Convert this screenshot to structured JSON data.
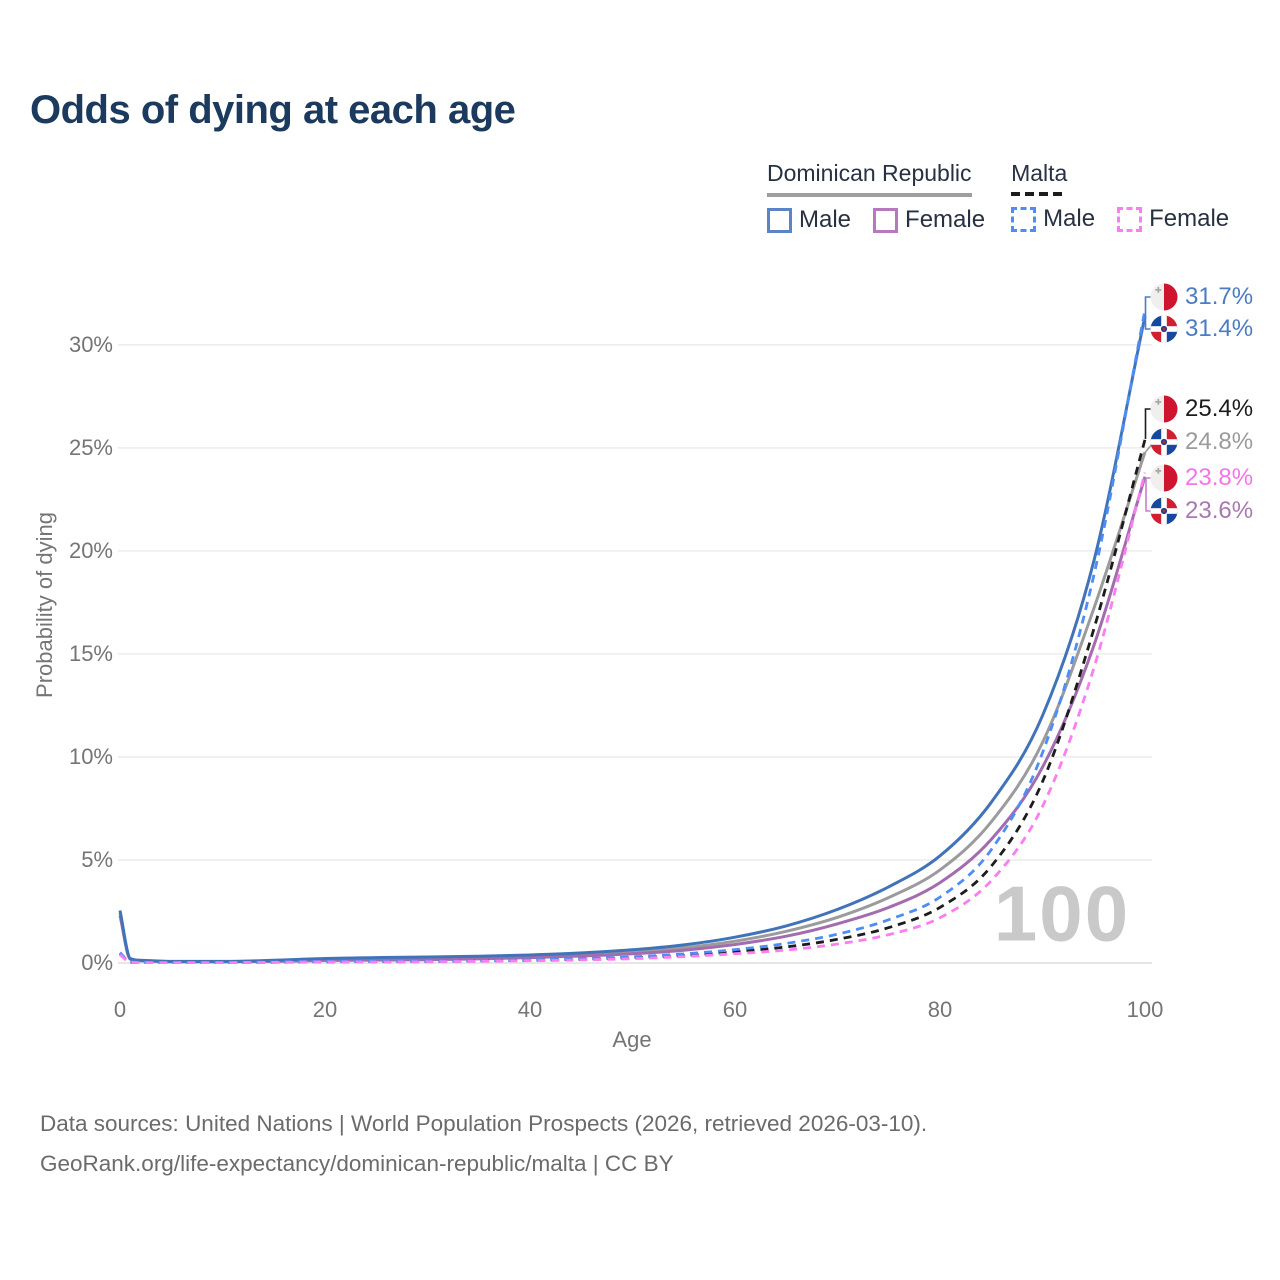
{
  "title": "Odds of dying at each age",
  "watermark": "100",
  "legend": {
    "groups": [
      {
        "label": "Dominican Republic",
        "style": "solid",
        "color": "#9e9ea0"
      },
      {
        "label": "Malta",
        "style": "dashed",
        "color": "#1c1c1c"
      }
    ],
    "items": [
      {
        "label": "Male",
        "country": "Dominican Republic",
        "group": 0,
        "style": "solid",
        "color": "#5b84c4"
      },
      {
        "label": "Female",
        "country": "Dominican Republic",
        "group": 0,
        "style": "solid",
        "color": "#b778bd"
      },
      {
        "label": "Male",
        "country": "Malta",
        "group": 1,
        "style": "dashed",
        "color": "#4e8cf6"
      },
      {
        "label": "Female",
        "country": "Malta",
        "group": 1,
        "style": "dashed",
        "color": "#fa7df2"
      }
    ]
  },
  "chart_data": {
    "type": "line",
    "title": "Odds of dying at each age",
    "xlabel": "Age",
    "ylabel": "Probability of dying",
    "x_ticks": [
      0,
      20,
      40,
      60,
      80,
      100
    ],
    "y_ticks": [
      "0%",
      "5%",
      "10%",
      "15%",
      "20%",
      "25%",
      "30%"
    ],
    "xlim": [
      0,
      100
    ],
    "ylim": [
      0,
      33
    ],
    "grid": "horizontal",
    "age_cursor": "100",
    "ages": [
      0,
      1,
      2,
      5,
      10,
      15,
      20,
      25,
      30,
      35,
      40,
      45,
      50,
      55,
      60,
      65,
      70,
      75,
      80,
      85,
      90,
      95,
      100
    ],
    "series": [
      {
        "name": "Dominican Republic Combined",
        "country": "Dominican Republic",
        "sex": "Combined",
        "color": "#9b9b9d",
        "dash": false,
        "end_value": "24.8%",
        "values": [
          2.42,
          0.2,
          0.12,
          0.07,
          0.07,
          0.1,
          0.17,
          0.2,
          0.22,
          0.26,
          0.32,
          0.41,
          0.54,
          0.74,
          1.06,
          1.54,
          2.22,
          3.18,
          4.52,
          6.85,
          10.7,
          17.2,
          24.8
        ]
      },
      {
        "name": "Dominican Republic Female",
        "country": "Dominican Republic",
        "sex": "Female",
        "color": "#a26cae",
        "dash": false,
        "end_value": "23.6%",
        "values": [
          2.3,
          0.18,
          0.11,
          0.06,
          0.06,
          0.08,
          0.12,
          0.14,
          0.16,
          0.2,
          0.26,
          0.34,
          0.45,
          0.62,
          0.9,
          1.3,
          1.9,
          2.7,
          3.9,
          6.0,
          9.5,
          15.4,
          23.6
        ]
      },
      {
        "name": "Dominican Republic Male",
        "country": "Dominican Republic",
        "sex": "Male",
        "color": "#4173b9",
        "dash": false,
        "end_value": "31.4%",
        "values": [
          2.55,
          0.22,
          0.13,
          0.08,
          0.08,
          0.13,
          0.22,
          0.26,
          0.29,
          0.33,
          0.39,
          0.49,
          0.64,
          0.88,
          1.25,
          1.8,
          2.6,
          3.7,
          5.2,
          7.8,
          12.0,
          19.5,
          31.4
        ]
      },
      {
        "name": "Malta Combined",
        "country": "Malta",
        "sex": "Combined",
        "color": "#1c1c1c",
        "dash": true,
        "end_value": "25.4%",
        "values": [
          0.45,
          0.04,
          0.03,
          0.02,
          0.02,
          0.04,
          0.06,
          0.07,
          0.08,
          0.1,
          0.13,
          0.18,
          0.26,
          0.37,
          0.55,
          0.78,
          1.15,
          1.72,
          2.7,
          4.7,
          8.8,
          16.2,
          25.4
        ]
      },
      {
        "name": "Malta Male",
        "country": "Malta",
        "sex": "Male",
        "color": "#4e8cf6",
        "dash": true,
        "end_value": "31.7%",
        "values": [
          0.5,
          0.05,
          0.03,
          0.02,
          0.02,
          0.05,
          0.08,
          0.09,
          0.1,
          0.12,
          0.15,
          0.21,
          0.3,
          0.44,
          0.65,
          0.95,
          1.4,
          2.1,
          3.2,
          5.5,
          10.2,
          18.8,
          31.7
        ]
      },
      {
        "name": "Malta Female",
        "country": "Malta",
        "sex": "Female",
        "color": "#fa7df2",
        "dash": true,
        "end_value": "23.8%",
        "values": [
          0.4,
          0.04,
          0.02,
          0.02,
          0.02,
          0.03,
          0.05,
          0.05,
          0.06,
          0.08,
          0.11,
          0.15,
          0.21,
          0.31,
          0.45,
          0.63,
          0.92,
          1.38,
          2.2,
          4.0,
          7.6,
          14.3,
          23.8
        ]
      }
    ],
    "end_labels": [
      {
        "text": "31.7%",
        "series": "Malta Male",
        "flag": "malta",
        "color": "#4a7cc1"
      },
      {
        "text": "31.4%",
        "series": "Dominican Republic Male",
        "flag": "dominican-republic",
        "color": "#4a7cc1"
      },
      {
        "text": "25.4%",
        "series": "Malta Combined",
        "flag": "malta",
        "color": "#1c1c1c"
      },
      {
        "text": "24.8%",
        "series": "Dominican Republic Combined",
        "flag": "dominican-republic",
        "color": "#9b9b9d"
      },
      {
        "text": "23.8%",
        "series": "Malta Female",
        "flag": "malta",
        "color": "#f673ec"
      },
      {
        "text": "23.6%",
        "series": "Dominican Republic Female",
        "flag": "dominican-republic",
        "color": "#a978b4"
      }
    ]
  },
  "footer": {
    "line1": "Data sources: United Nations | World Population Prospects (2026, retrieved 2026-03-10).",
    "line2": "GeoRank.org/life-expectancy/dominican-republic/malta | CC BY"
  }
}
